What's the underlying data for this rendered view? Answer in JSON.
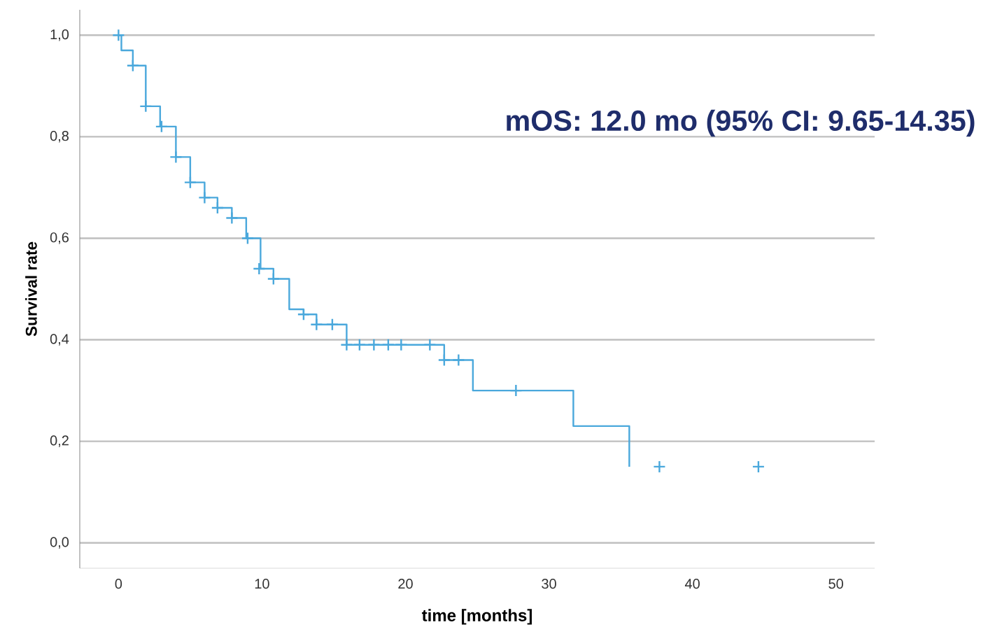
{
  "chart_data": {
    "type": "step",
    "xlabel": "time [months]",
    "ylabel": "Survival rate",
    "annotations": [
      "mOS: 12.0 mo (95%  CI: 9.65-14.35)"
    ],
    "xlim": [
      -2.7,
      52.7
    ],
    "ylim": [
      -0.05,
      1.05
    ],
    "xticks": [
      0,
      10,
      20,
      30,
      40,
      50
    ],
    "yticks": [
      {
        "value": 0.0,
        "label": "0,0"
      },
      {
        "value": 0.2,
        "label": "0,2"
      },
      {
        "value": 0.4,
        "label": "0,4"
      },
      {
        "value": 0.6,
        "label": "0,6"
      },
      {
        "value": 0.8,
        "label": "0,8"
      },
      {
        "value": 1.0,
        "label": "1,0"
      }
    ],
    "grid": "y",
    "series": [
      {
        "color": "#4aa8dc",
        "marker": "none",
        "x": [
          0,
          0.2,
          1.0,
          1.9,
          2.9,
          4.0,
          5.0,
          6.0,
          6.9,
          7.9,
          8.9,
          9.9,
          10.8,
          11.9,
          12.9,
          13.8,
          15.9,
          22.7,
          24.7,
          31.7,
          35.6
        ],
        "values": [
          1.0,
          0.97,
          0.94,
          0.86,
          0.82,
          0.76,
          0.71,
          0.68,
          0.66,
          0.64,
          0.6,
          0.54,
          0.52,
          0.46,
          0.45,
          0.43,
          0.39,
          0.36,
          0.3,
          0.23,
          0.15
        ]
      },
      {
        "type": "scatter",
        "color": "#4aa8dc",
        "marker": "cross",
        "x": [
          0,
          1.0,
          1.9,
          3.0,
          4.0,
          5.0,
          6.0,
          6.9,
          7.9,
          9.0,
          9.8,
          10.8,
          12.9,
          13.8,
          14.9,
          15.9,
          16.8,
          17.8,
          18.8,
          19.7,
          21.7,
          22.7,
          23.7,
          27.7,
          37.7,
          44.6
        ],
        "values": [
          1.0,
          0.94,
          0.86,
          0.82,
          0.76,
          0.71,
          0.68,
          0.66,
          0.64,
          0.6,
          0.54,
          0.52,
          0.45,
          0.43,
          0.43,
          0.39,
          0.39,
          0.39,
          0.39,
          0.39,
          0.39,
          0.36,
          0.36,
          0.3,
          0.15,
          0.15
        ]
      }
    ]
  }
}
